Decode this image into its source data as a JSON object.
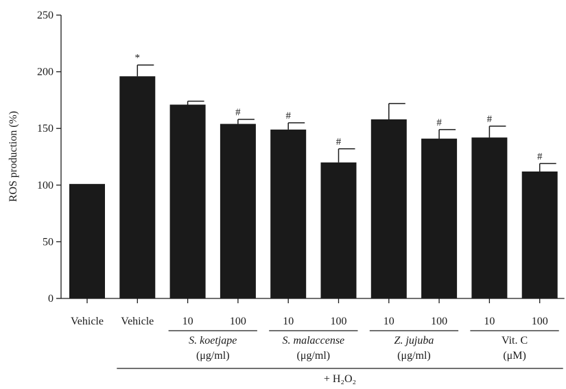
{
  "chart_data": {
    "type": "bar",
    "ylabel": "ROS production (%)",
    "ylim": [
      0,
      250
    ],
    "yticks": [
      0,
      50,
      100,
      150,
      200,
      250
    ],
    "bar_color": "#1a1a1a",
    "grid": false,
    "categories": [
      "Vehicle",
      "Vehicle",
      "10",
      "100",
      "10",
      "100",
      "10",
      "100",
      "10",
      "100"
    ],
    "values": [
      101,
      196,
      171,
      154,
      149,
      120,
      158,
      141,
      142,
      112
    ],
    "errors": [
      0,
      10,
      3,
      4,
      6,
      12,
      14,
      8,
      10,
      7
    ],
    "annotations": [
      "",
      "*",
      "",
      "#",
      "#",
      "#",
      "",
      "#",
      "#",
      "#"
    ],
    "groups": [
      {
        "name": "S. koetjape",
        "unit": "(μg/ml)",
        "italic": true,
        "bars": [
          2,
          3
        ]
      },
      {
        "name": "S. malaccense",
        "unit": "(μg/ml)",
        "italic": true,
        "bars": [
          4,
          5
        ]
      },
      {
        "name": "Z. jujuba",
        "unit": "(μg/ml)",
        "italic": true,
        "bars": [
          6,
          7
        ]
      },
      {
        "name": "Vit. C",
        "unit": "(μM)",
        "italic": false,
        "bars": [
          8,
          9
        ]
      }
    ],
    "treatment_label": "+ H₂O₂",
    "treatment_bars": [
      1,
      9
    ]
  }
}
